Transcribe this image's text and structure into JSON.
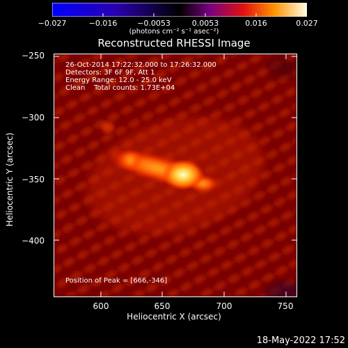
{
  "colorbar": {
    "tick_labels": [
      "−0.027",
      "−0.016",
      "−0.0053",
      "0.0053",
      "0.016",
      "0.027"
    ],
    "units": "(photons cm⁻² s⁻¹ asec⁻²)"
  },
  "title": "Reconstructed RHESSI Image",
  "info": {
    "time_range": "26-Oct-2014 17:22:32.000 to 17:26:32.000",
    "detectors": "Detectors: 3F 6F 9F, Att 1",
    "energy": "Energy Range: 12.0 - 25.0 keV",
    "clean": "Clean    Total counts: 1.73E+04",
    "peak": "Position of Peak = [666,-346]"
  },
  "axes": {
    "y_label": "Heliocentric Y (arcsec)",
    "x_label": "Heliocentric X (arcsec)",
    "y_ticks": [
      "−250",
      "−300",
      "−350",
      "−400"
    ],
    "x_ticks": [
      "600",
      "650",
      "700",
      "750"
    ],
    "x_range": [
      565,
      755
    ],
    "y_range": [
      -445,
      -245
    ]
  },
  "timestamp": "18-May-2022 17:52",
  "colors": {
    "background": "#000000",
    "text": "#ffffff",
    "peak_core": "#ffffd0"
  }
}
